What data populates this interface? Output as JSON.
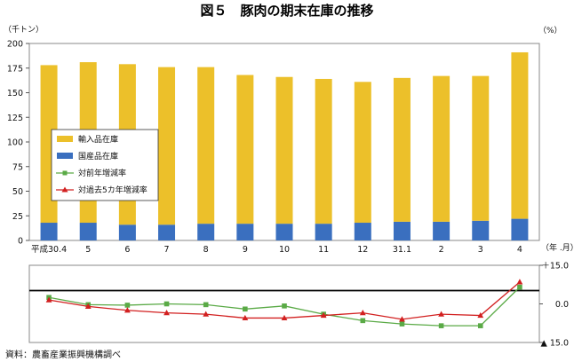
{
  "title": "図５　豚肉の期末在庫の推移",
  "source": "資料：農畜産業振興機構調べ",
  "chart_data": [
    {
      "type": "bar",
      "stacked": true,
      "y_unit_label": "（千トン）",
      "ylim": [
        0,
        200
      ],
      "y_ticks": [
        "0",
        "25",
        "50",
        "75",
        "100",
        "125",
        "150",
        "175",
        "200"
      ],
      "categories": [
        "平成30.4",
        "5",
        "6",
        "7",
        "8",
        "9",
        "10",
        "11",
        "12",
        "31.1",
        "2",
        "3",
        "4"
      ],
      "x_unit_label": "（年 .月）",
      "grid": false,
      "legend_position": "left",
      "series": [
        {
          "name": "国産品在庫",
          "color": "#3a6fbf",
          "values": [
            18,
            18,
            16,
            16,
            17,
            17,
            17,
            17,
            18,
            19,
            19,
            20,
            22
          ]
        },
        {
          "name": "輸入品在庫",
          "color": "#ecc02a",
          "values": [
            160,
            163,
            163,
            160,
            159,
            151,
            149,
            147,
            143,
            146,
            148,
            147,
            169
          ]
        }
      ]
    },
    {
      "type": "line",
      "y_unit_label": "（%）",
      "ylim": [
        -15,
        15
      ],
      "y_ticks": [
        "＋15.0",
        "0.0",
        "▲ 15.0"
      ],
      "categories": [
        "平成30.4",
        "5",
        "6",
        "7",
        "8",
        "9",
        "10",
        "11",
        "12",
        "31.1",
        "2",
        "3",
        "4"
      ],
      "series": [
        {
          "name": "対前年増減率",
          "color": "#5aaa46",
          "marker": "square",
          "values": [
            2.5,
            -0.3,
            -0.5,
            0.0,
            -0.3,
            -2.0,
            -0.8,
            -4.0,
            -6.5,
            -7.8,
            -8.5,
            -8.5,
            6.5
          ]
        },
        {
          "name": "対過去5カ年増減率",
          "color": "#d22020",
          "marker": "triangle",
          "values": [
            1.5,
            -1.0,
            -2.5,
            -3.5,
            -4.0,
            -5.5,
            -5.5,
            -4.5,
            -3.5,
            -6.0,
            -4.0,
            -4.5,
            8.5
          ]
        }
      ]
    }
  ]
}
